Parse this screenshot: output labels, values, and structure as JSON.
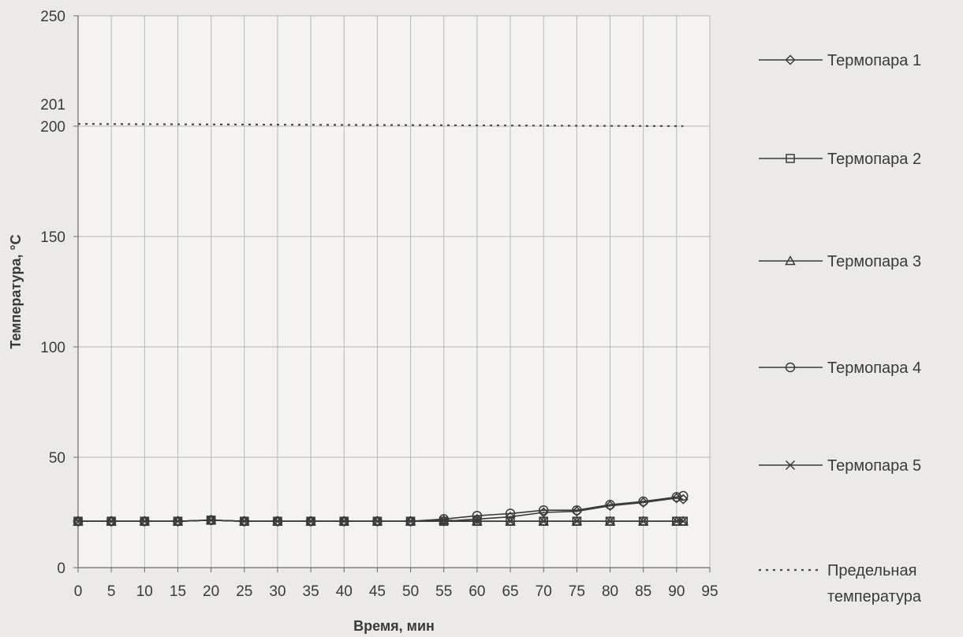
{
  "chart_data": {
    "type": "line",
    "xlabel": "Время, мин",
    "ylabel": "Температура, °С",
    "xlim": [
      0,
      95
    ],
    "ylim": [
      0,
      250
    ],
    "x_ticks": [
      0,
      5,
      10,
      15,
      20,
      25,
      30,
      35,
      40,
      45,
      50,
      55,
      60,
      65,
      70,
      75,
      80,
      85,
      90,
      95
    ],
    "y_ticks": [
      0,
      50,
      100,
      150,
      200,
      250
    ],
    "extra_y_labels": [
      201
    ],
    "grid": true,
    "legend_position": "right",
    "x": [
      0,
      5,
      10,
      15,
      20,
      25,
      30,
      35,
      40,
      45,
      50,
      55,
      60,
      65,
      70,
      75,
      80,
      85,
      90,
      91
    ],
    "series": [
      {
        "name": "Термопара 1",
        "marker": "diamond",
        "values": [
          21,
          21,
          21,
          21,
          21.5,
          21,
          21,
          21,
          21,
          21,
          21,
          21,
          22,
          23,
          25,
          25.5,
          28,
          29.5,
          31.5,
          31
        ]
      },
      {
        "name": "Термопара 2",
        "marker": "square",
        "values": [
          21,
          21,
          21,
          21,
          21.5,
          21,
          21,
          21,
          21,
          21,
          21,
          21,
          21,
          21,
          21,
          21,
          21,
          21,
          21,
          21
        ]
      },
      {
        "name": "Термопара 3",
        "marker": "triangle",
        "values": [
          21,
          21,
          21,
          21,
          21.5,
          21,
          21,
          21,
          21,
          21,
          21,
          21.5,
          21,
          21,
          21,
          21,
          21,
          21,
          21,
          21
        ]
      },
      {
        "name": "Термопара 4",
        "marker": "circle",
        "values": [
          21,
          21,
          21,
          21,
          21.5,
          21,
          21,
          21,
          21,
          21,
          21,
          22,
          23.5,
          24.5,
          26,
          26,
          28.5,
          30,
          32,
          32.5
        ]
      },
      {
        "name": "Термопара 5",
        "marker": "x",
        "values": [
          21,
          21,
          21,
          21,
          21.5,
          21,
          21,
          21,
          21,
          21,
          21,
          21,
          21,
          21,
          21,
          21,
          21,
          21,
          21,
          21
        ]
      }
    ],
    "limit_line": {
      "name": "Предельная температура",
      "label_lines": [
        "Предельная",
        "температура"
      ],
      "x": [
        0,
        91
      ],
      "values": [
        201,
        200
      ],
      "style": "dotted"
    },
    "colors": {
      "line": "#3a3a3a",
      "grid": "#b7b7b7",
      "background": "#ebeae6",
      "plot_background": "#f4f3ef"
    }
  }
}
